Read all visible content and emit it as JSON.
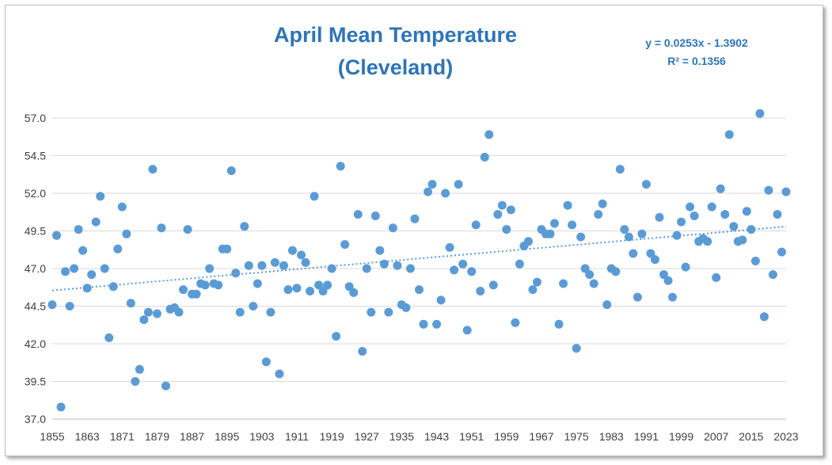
{
  "chart_data": {
    "type": "scatter",
    "title_line1": "April Mean Temperature",
    "title_line2": "(Cleveland)",
    "xlabel": "",
    "ylabel": "",
    "xlim": [
      1855,
      2023
    ],
    "ylim": [
      37.0,
      58.0
    ],
    "x_ticks": [
      "1855",
      "1863",
      "1871",
      "1879",
      "1887",
      "1895",
      "1903",
      "1911",
      "1919",
      "1927",
      "1935",
      "1943",
      "1951",
      "1959",
      "1967",
      "1975",
      "1983",
      "1991",
      "1999",
      "2007",
      "2015",
      "2023"
    ],
    "y_ticks": [
      "37.0",
      "39.5",
      "42.0",
      "44.5",
      "47.0",
      "49.5",
      "52.0",
      "54.5",
      "57.0"
    ],
    "grid": "horizontal",
    "marker_color": "#5b9bd5",
    "trendline": {
      "slope": 0.0253,
      "intercept": -1.3902,
      "equation": "y = 0.0253x - 1.3902",
      "r_squared": "R² = 0.1356",
      "style": "dotted"
    },
    "x": [
      1855,
      1856,
      1857,
      1858,
      1859,
      1860,
      1861,
      1862,
      1863,
      1864,
      1865,
      1866,
      1867,
      1868,
      1869,
      1870,
      1871,
      1872,
      1873,
      1874,
      1875,
      1876,
      1877,
      1878,
      1879,
      1880,
      1881,
      1882,
      1883,
      1884,
      1885,
      1886,
      1887,
      1888,
      1889,
      1890,
      1891,
      1892,
      1893,
      1894,
      1895,
      1896,
      1897,
      1898,
      1899,
      1900,
      1901,
      1902,
      1903,
      1904,
      1905,
      1906,
      1907,
      1908,
      1909,
      1910,
      1911,
      1912,
      1913,
      1914,
      1915,
      1916,
      1917,
      1918,
      1919,
      1920,
      1921,
      1922,
      1923,
      1924,
      1925,
      1926,
      1927,
      1928,
      1929,
      1930,
      1931,
      1932,
      1933,
      1934,
      1935,
      1936,
      1937,
      1938,
      1939,
      1940,
      1941,
      1942,
      1943,
      1944,
      1945,
      1946,
      1947,
      1948,
      1949,
      1950,
      1951,
      1952,
      1953,
      1954,
      1955,
      1956,
      1957,
      1958,
      1959,
      1960,
      1961,
      1962,
      1963,
      1964,
      1965,
      1966,
      1967,
      1968,
      1969,
      1970,
      1971,
      1972,
      1973,
      1974,
      1975,
      1976,
      1977,
      1978,
      1979,
      1980,
      1981,
      1982,
      1983,
      1984,
      1985,
      1986,
      1987,
      1988,
      1989,
      1990,
      1991,
      1992,
      1993,
      1994,
      1995,
      1996,
      1997,
      1998,
      1999,
      2000,
      2001,
      2002,
      2003,
      2004,
      2005,
      2006,
      2007,
      2008,
      2009,
      2010,
      2011,
      2012,
      2013,
      2014,
      2015,
      2016,
      2017,
      2018,
      2019,
      2020,
      2021,
      2022,
      2023
    ],
    "y": [
      44.6,
      49.2,
      37.8,
      46.8,
      44.5,
      47.0,
      49.6,
      48.2,
      45.7,
      46.6,
      50.1,
      51.8,
      47.0,
      42.4,
      45.8,
      48.3,
      51.1,
      49.3,
      44.7,
      39.5,
      40.3,
      43.6,
      44.1,
      53.6,
      44.0,
      49.7,
      39.2,
      44.3,
      44.4,
      44.1,
      45.6,
      49.6,
      45.3,
      45.3,
      46.0,
      45.9,
      47.0,
      46.0,
      45.9,
      48.3,
      48.3,
      53.5,
      46.7,
      44.1,
      49.8,
      47.2,
      44.5,
      46.0,
      47.2,
      40.8,
      44.1,
      47.4,
      40.0,
      47.2,
      45.6,
      48.2,
      45.7,
      47.9,
      47.4,
      45.5,
      51.8,
      45.9,
      45.5,
      45.9,
      47.0,
      42.5,
      53.8,
      48.6,
      45.8,
      45.4,
      50.6,
      41.5,
      47.0,
      44.1,
      50.5,
      48.2,
      47.3,
      44.1,
      49.7,
      47.2,
      44.6,
      44.4,
      47.0,
      50.3,
      45.6,
      43.3,
      52.1,
      52.6,
      43.3,
      44.9,
      52.0,
      48.4,
      46.9,
      52.6,
      47.3,
      42.9,
      46.8,
      49.9,
      45.5,
      54.4,
      55.9,
      45.9,
      50.6,
      51.2,
      49.6,
      50.9,
      43.4,
      47.3,
      48.5,
      48.8,
      45.6,
      46.1,
      49.6,
      49.3,
      49.3,
      50.0,
      43.3,
      46.0,
      51.2,
      49.9,
      41.7,
      49.1,
      47.0,
      46.6,
      46.0,
      50.6,
      51.3,
      44.6,
      47.0,
      46.8,
      53.6,
      49.6,
      49.1,
      48.0,
      45.1,
      49.3,
      52.6,
      48.0,
      47.6,
      50.4,
      46.6,
      46.2,
      45.1,
      49.2,
      50.1,
      47.1,
      51.1,
      50.5,
      48.8,
      49.0,
      48.8,
      51.1,
      46.4,
      52.3,
      50.6,
      55.9,
      49.8,
      48.8,
      48.9,
      50.8,
      49.6,
      47.5,
      57.3,
      43.8,
      52.2,
      46.6,
      50.6,
      48.1,
      52.1
    ]
  }
}
